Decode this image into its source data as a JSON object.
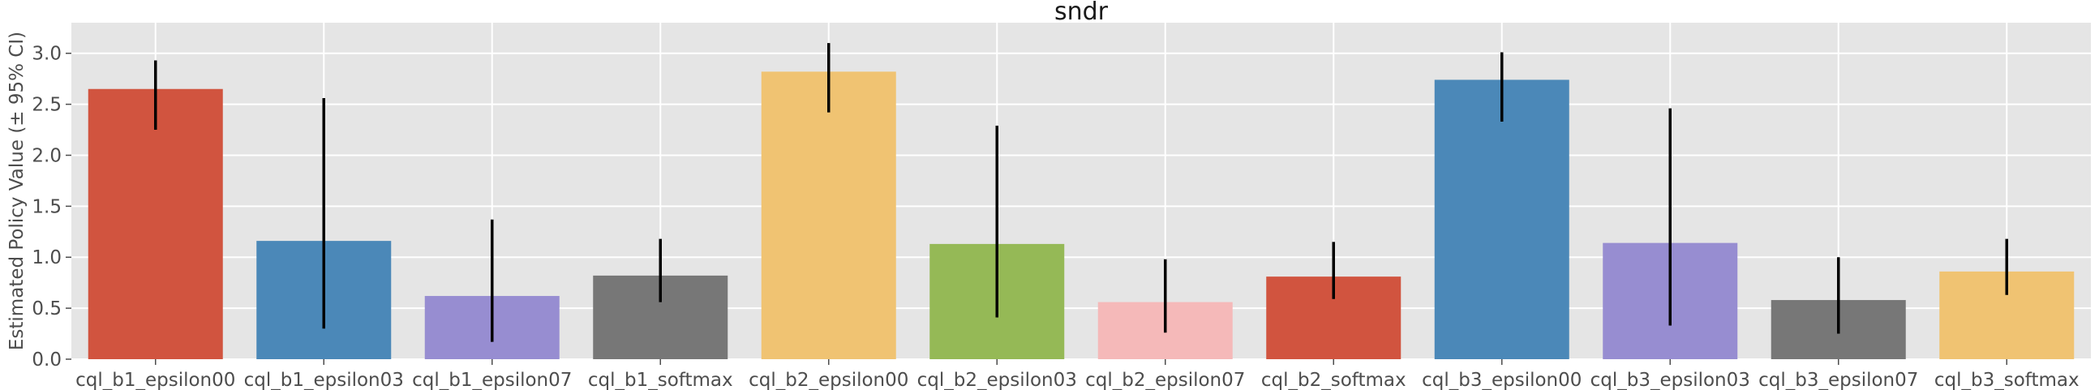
{
  "chart_data": {
    "type": "bar",
    "title": "sndr",
    "xlabel": "",
    "ylabel": "Estimated Policy Value (± 95% CI)",
    "ylim": [
      0,
      3.3
    ],
    "yticks": [
      0.0,
      0.5,
      1.0,
      1.5,
      2.0,
      2.5,
      3.0
    ],
    "ytick_labels": [
      "0.0",
      "0.5",
      "1.0",
      "1.5",
      "2.0",
      "2.5",
      "3.0"
    ],
    "grid": true,
    "categories": [
      "cql_b1_epsilon00",
      "cql_b1_epsilon03",
      "cql_b1_epsilon07",
      "cql_b1_softmax",
      "cql_b2_epsilon00",
      "cql_b2_epsilon03",
      "cql_b2_epsilon07",
      "cql_b2_softmax",
      "cql_b3_epsilon00",
      "cql_b3_epsilon03",
      "cql_b3_epsilon07",
      "cql_b3_softmax"
    ],
    "values": [
      2.65,
      1.16,
      0.62,
      0.82,
      2.82,
      1.13,
      0.56,
      0.81,
      2.74,
      1.14,
      0.58,
      0.86
    ],
    "ci_low": [
      2.25,
      0.3,
      0.17,
      0.56,
      2.42,
      0.41,
      0.26,
      0.59,
      2.33,
      0.33,
      0.25,
      0.63
    ],
    "ci_high": [
      2.93,
      2.56,
      1.37,
      1.18,
      3.1,
      2.29,
      0.98,
      1.15,
      3.01,
      2.46,
      1.0,
      1.18
    ],
    "colors": [
      "#d1543f",
      "#4b88b8",
      "#978dd1",
      "#777777",
      "#f0c372",
      "#95b956",
      "#f5b9b9",
      "#d1543f",
      "#4b88b8",
      "#978dd1",
      "#777777",
      "#f0c372"
    ],
    "background": "#e5e5e5",
    "grid_color": "#ffffff",
    "errorbar_color": "#000000"
  }
}
